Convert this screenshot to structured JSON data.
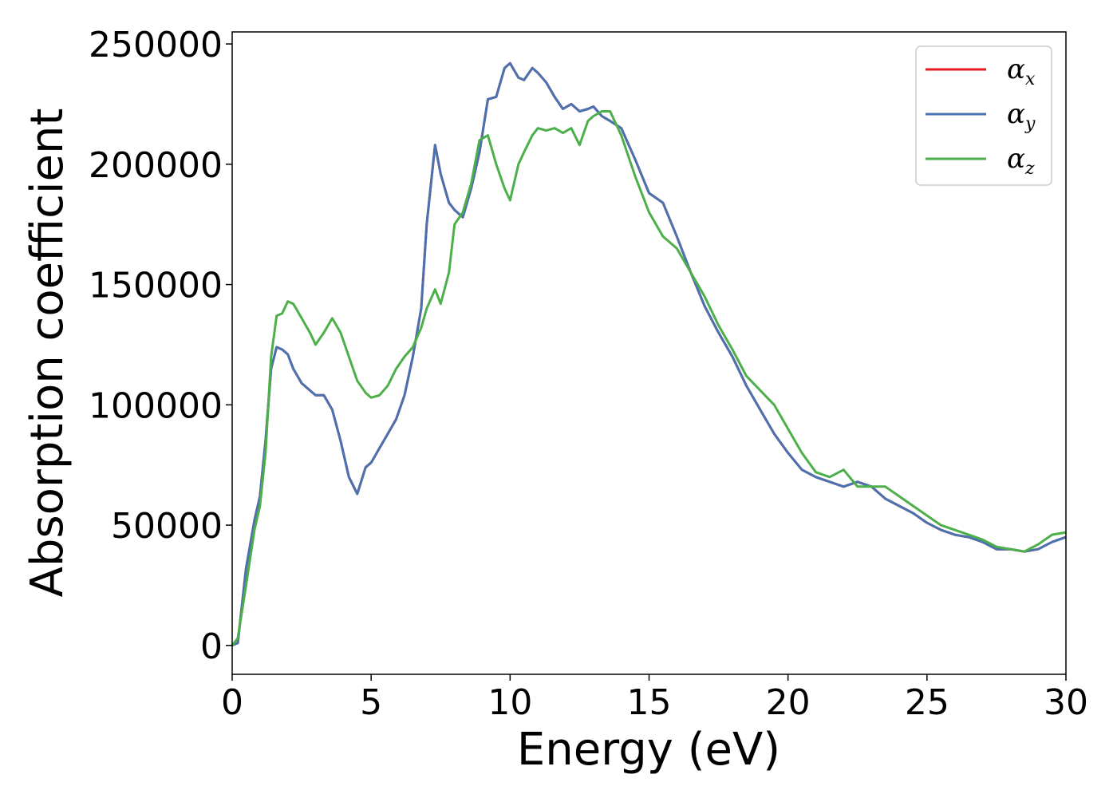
{
  "chart_data": {
    "type": "line",
    "xlabel": "Energy (eV)",
    "ylabel": "Absorption coefficient",
    "xlim": [
      0,
      30
    ],
    "ylim": [
      -12000,
      255000
    ],
    "xticks": [
      0,
      5,
      10,
      15,
      20,
      25,
      30
    ],
    "yticks": [
      0,
      50000,
      100000,
      150000,
      200000,
      250000
    ],
    "grid": false,
    "legend_position": "top-right",
    "series": [
      {
        "name": "αx",
        "legend_base": "α",
        "legend_sub": "x",
        "color": "#e41a1c",
        "x": [
          0,
          0.2,
          0.5,
          0.8,
          1.0,
          1.2,
          1.4,
          1.6,
          1.8,
          2.0,
          2.2,
          2.5,
          2.8,
          3.0,
          3.3,
          3.6,
          3.9,
          4.2,
          4.5,
          4.8,
          5.0,
          5.3,
          5.6,
          5.9,
          6.2,
          6.5,
          6.8,
          7.0,
          7.3,
          7.5,
          7.8,
          8.0,
          8.3,
          8.6,
          8.9,
          9.2,
          9.5,
          9.8,
          10.0,
          10.3,
          10.5,
          10.8,
          11.0,
          11.3,
          11.6,
          11.9,
          12.2,
          12.5,
          12.8,
          13.0,
          13.3,
          13.6,
          14.0,
          14.5,
          15.0,
          15.5,
          16.0,
          16.5,
          17.0,
          17.5,
          18.0,
          18.5,
          19.0,
          19.5,
          20.0,
          20.5,
          21.0,
          21.5,
          22.0,
          22.5,
          23.0,
          23.5,
          24.0,
          24.5,
          25.0,
          25.5,
          26.0,
          26.5,
          27.0,
          27.5,
          28.0,
          28.5,
          29.0,
          29.5,
          30.0
        ],
        "y": [
          0,
          1000,
          32000,
          52000,
          62000,
          85000,
          115000,
          124000,
          123000,
          121000,
          115000,
          109000,
          106000,
          104000,
          104000,
          98000,
          85000,
          70000,
          63000,
          74000,
          76000,
          82000,
          88000,
          94000,
          104000,
          120000,
          140000,
          175000,
          208000,
          196000,
          184000,
          181000,
          178000,
          190000,
          205000,
          227000,
          228000,
          240000,
          242000,
          236000,
          235000,
          240000,
          238000,
          234000,
          228000,
          223000,
          225000,
          222000,
          223000,
          224000,
          220000,
          218000,
          215000,
          202000,
          188000,
          184000,
          170000,
          155000,
          141000,
          130000,
          120000,
          108000,
          98000,
          88000,
          80000,
          73000,
          70000,
          68000,
          66000,
          68000,
          66000,
          61000,
          58000,
          55000,
          51000,
          48000,
          46000,
          45000,
          43000,
          40000,
          40000,
          39000,
          40000,
          43000,
          45000
        ]
      },
      {
        "name": "αy",
        "legend_base": "α",
        "legend_sub": "y",
        "color": "#4a72b0",
        "x": [
          0,
          0.2,
          0.5,
          0.8,
          1.0,
          1.2,
          1.4,
          1.6,
          1.8,
          2.0,
          2.2,
          2.5,
          2.8,
          3.0,
          3.3,
          3.6,
          3.9,
          4.2,
          4.5,
          4.8,
          5.0,
          5.3,
          5.6,
          5.9,
          6.2,
          6.5,
          6.8,
          7.0,
          7.3,
          7.5,
          7.8,
          8.0,
          8.3,
          8.6,
          8.9,
          9.2,
          9.5,
          9.8,
          10.0,
          10.3,
          10.5,
          10.8,
          11.0,
          11.3,
          11.6,
          11.9,
          12.2,
          12.5,
          12.8,
          13.0,
          13.3,
          13.6,
          14.0,
          14.5,
          15.0,
          15.5,
          16.0,
          16.5,
          17.0,
          17.5,
          18.0,
          18.5,
          19.0,
          19.5,
          20.0,
          20.5,
          21.0,
          21.5,
          22.0,
          22.5,
          23.0,
          23.5,
          24.0,
          24.5,
          25.0,
          25.5,
          26.0,
          26.5,
          27.0,
          27.5,
          28.0,
          28.5,
          29.0,
          29.5,
          30.0
        ],
        "y": [
          0,
          1000,
          32000,
          52000,
          62000,
          85000,
          115000,
          124000,
          123000,
          121000,
          115000,
          109000,
          106000,
          104000,
          104000,
          98000,
          85000,
          70000,
          63000,
          74000,
          76000,
          82000,
          88000,
          94000,
          104000,
          120000,
          140000,
          175000,
          208000,
          196000,
          184000,
          181000,
          178000,
          190000,
          205000,
          227000,
          228000,
          240000,
          242000,
          236000,
          235000,
          240000,
          238000,
          234000,
          228000,
          223000,
          225000,
          222000,
          223000,
          224000,
          220000,
          218000,
          215000,
          202000,
          188000,
          184000,
          170000,
          155000,
          141000,
          130000,
          120000,
          108000,
          98000,
          88000,
          80000,
          73000,
          70000,
          68000,
          66000,
          68000,
          66000,
          61000,
          58000,
          55000,
          51000,
          48000,
          46000,
          45000,
          43000,
          40000,
          40000,
          39000,
          40000,
          43000,
          45000
        ]
      },
      {
        "name": "αz",
        "legend_base": "α",
        "legend_sub": "z",
        "color": "#4daf4a",
        "x": [
          0,
          0.2,
          0.5,
          0.8,
          1.0,
          1.2,
          1.4,
          1.6,
          1.8,
          2.0,
          2.2,
          2.5,
          2.8,
          3.0,
          3.3,
          3.6,
          3.9,
          4.2,
          4.5,
          4.8,
          5.0,
          5.3,
          5.6,
          5.9,
          6.2,
          6.5,
          6.8,
          7.0,
          7.3,
          7.5,
          7.8,
          8.0,
          8.3,
          8.6,
          8.9,
          9.2,
          9.5,
          9.8,
          10.0,
          10.3,
          10.5,
          10.8,
          11.0,
          11.3,
          11.6,
          11.9,
          12.2,
          12.5,
          12.8,
          13.0,
          13.3,
          13.6,
          14.0,
          14.5,
          15.0,
          15.5,
          16.0,
          16.5,
          17.0,
          17.5,
          18.0,
          18.5,
          19.0,
          19.5,
          20.0,
          20.5,
          21.0,
          21.5,
          22.0,
          22.5,
          23.0,
          23.5,
          24.0,
          24.5,
          25.0,
          25.5,
          26.0,
          26.5,
          27.0,
          27.5,
          28.0,
          28.5,
          29.0,
          29.5,
          30.0
        ],
        "y": [
          0,
          3000,
          25000,
          48000,
          58000,
          80000,
          120000,
          137000,
          138000,
          143000,
          142000,
          136000,
          130000,
          125000,
          130000,
          136000,
          130000,
          120000,
          110000,
          105000,
          103000,
          104000,
          108000,
          115000,
          120000,
          124000,
          132000,
          140000,
          148000,
          142000,
          155000,
          175000,
          180000,
          192000,
          210000,
          212000,
          200000,
          190000,
          185000,
          200000,
          205000,
          212000,
          215000,
          214000,
          215000,
          213000,
          215000,
          208000,
          218000,
          220000,
          222000,
          222000,
          212000,
          195000,
          180000,
          170000,
          165000,
          155000,
          145000,
          133000,
          123000,
          112000,
          106000,
          100000,
          90000,
          80000,
          72000,
          70000,
          73000,
          66000,
          66000,
          66000,
          62000,
          58000,
          54000,
          50000,
          48000,
          46000,
          44000,
          41000,
          40000,
          39000,
          42000,
          46000,
          47000
        ]
      }
    ]
  }
}
